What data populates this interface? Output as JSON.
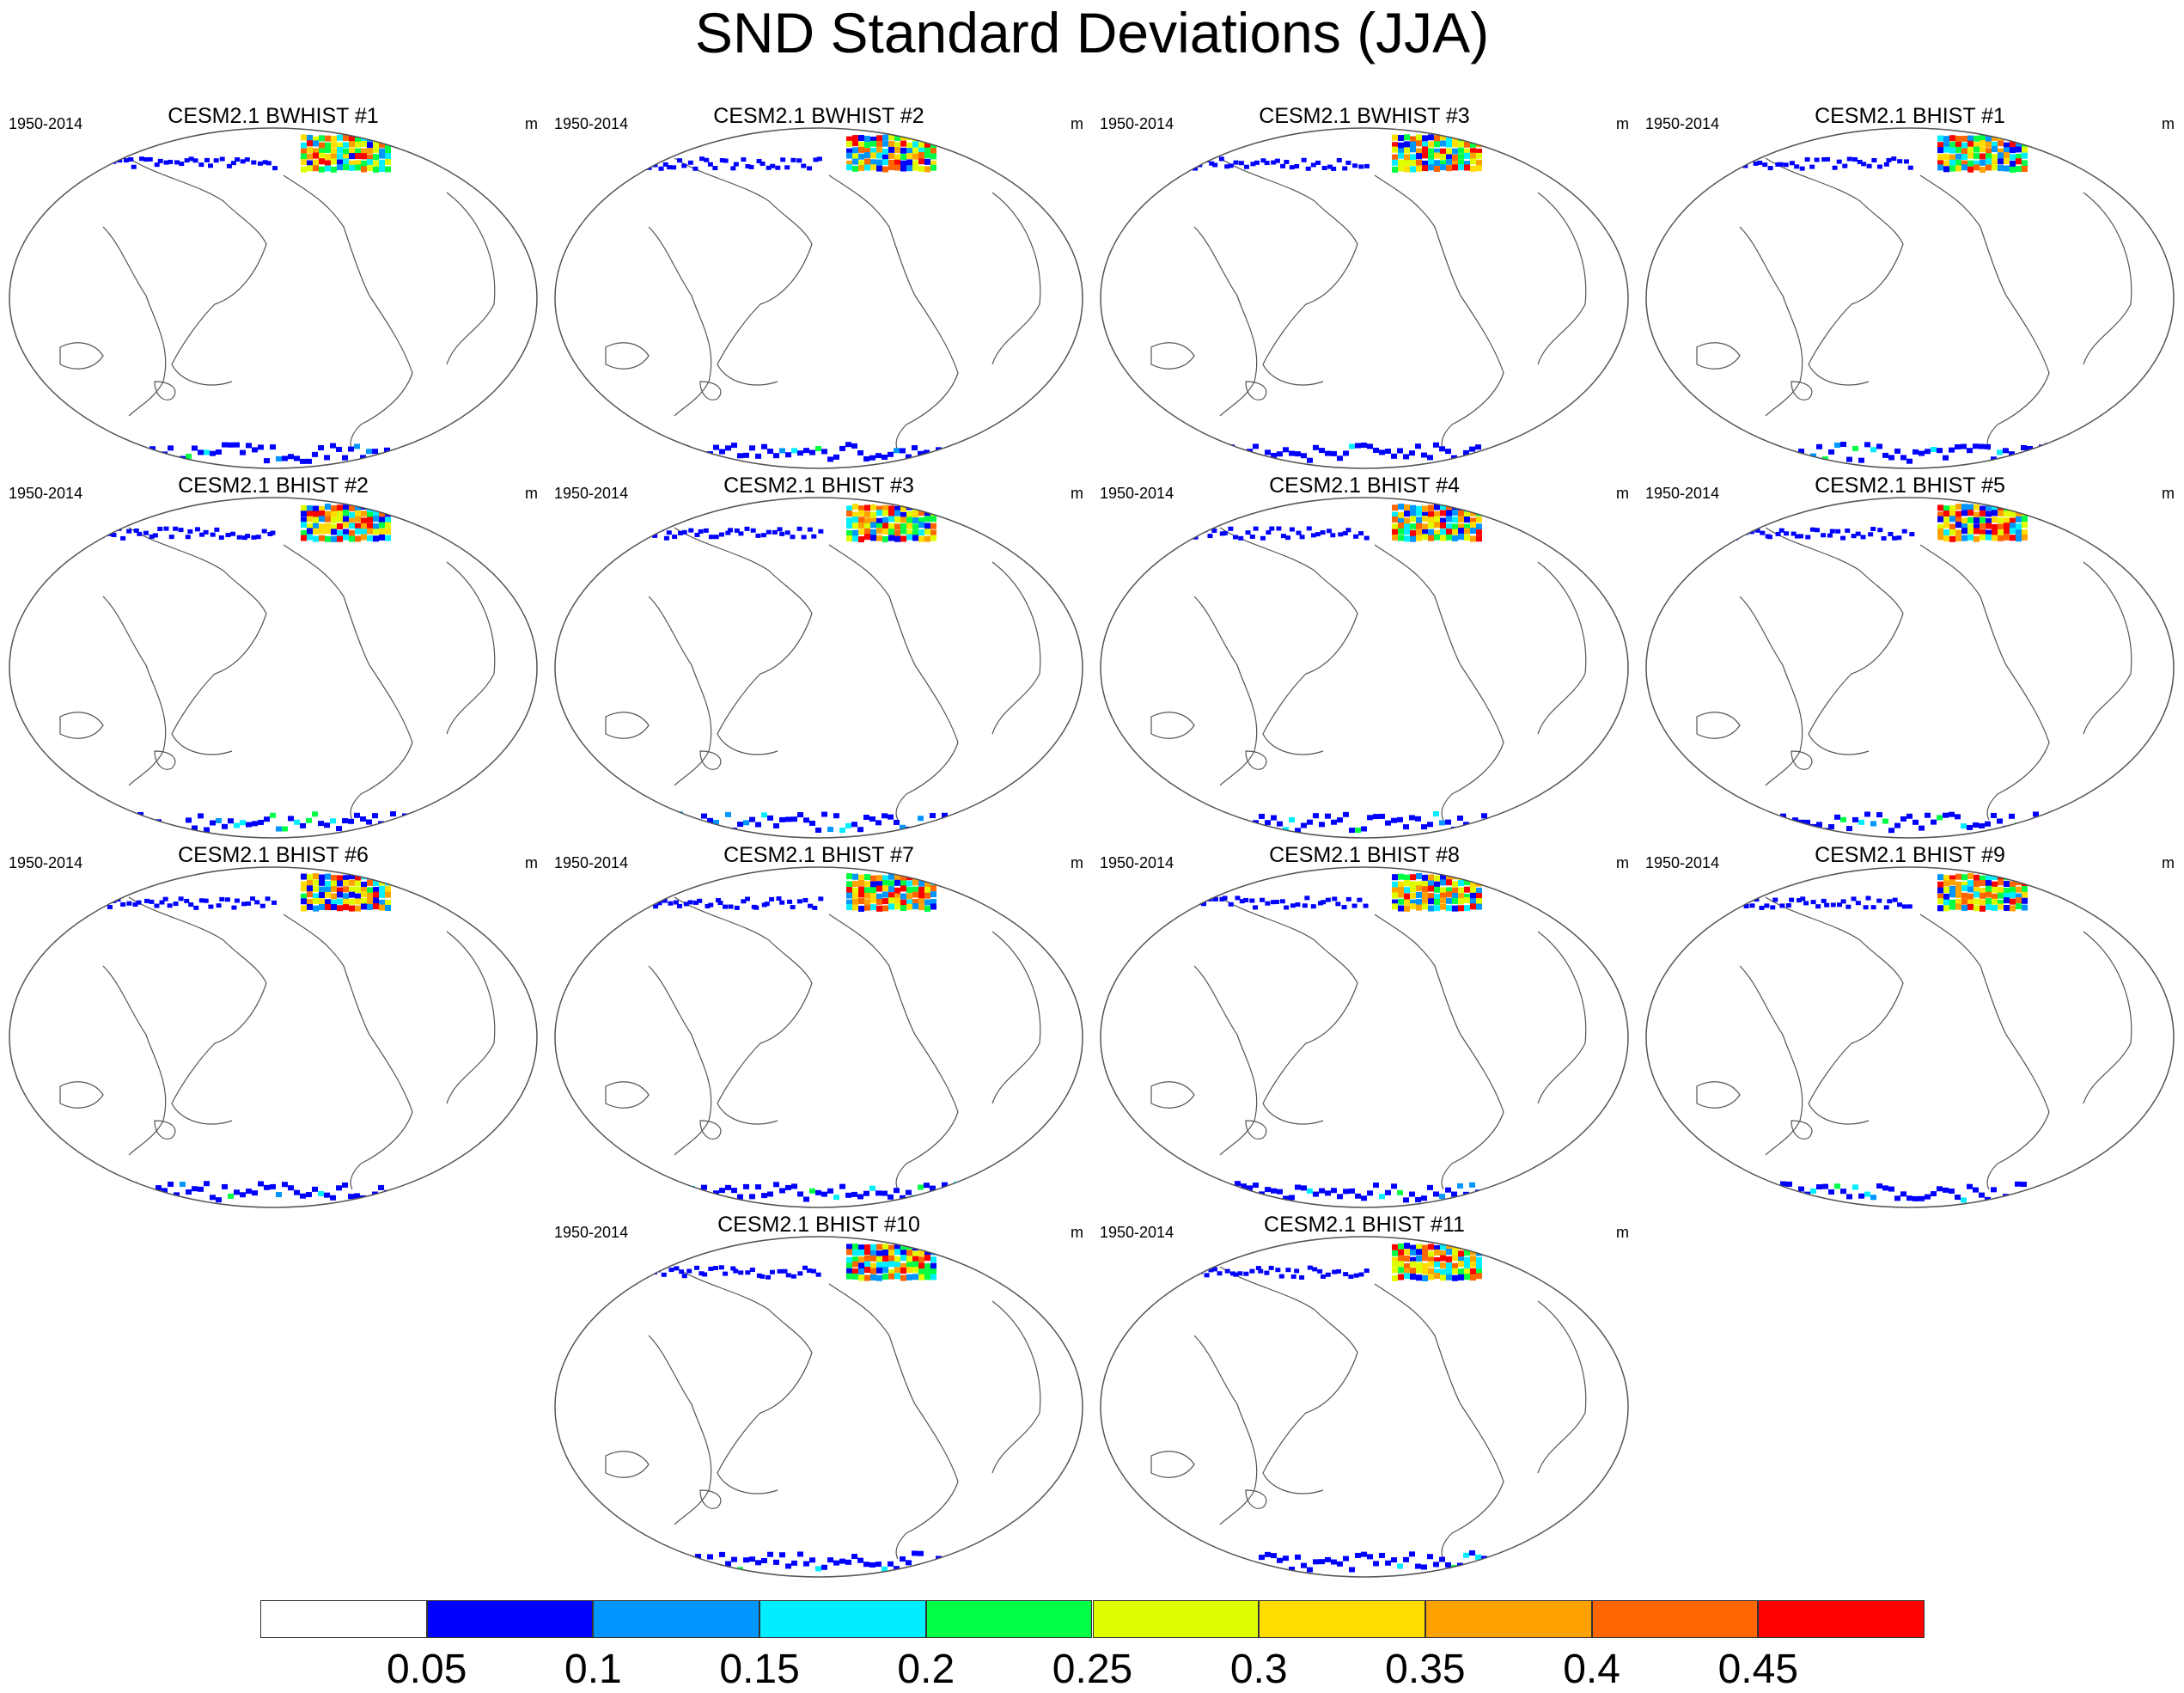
{
  "title": "SND Standard Deviations (JJA)",
  "panels": [
    {
      "title": "CESM2.1 BWHIST #1",
      "years": "1950-2014",
      "units": "m"
    },
    {
      "title": "CESM2.1 BWHIST #2",
      "years": "1950-2014",
      "units": "m"
    },
    {
      "title": "CESM2.1 BWHIST #3",
      "years": "1950-2014",
      "units": "m"
    },
    {
      "title": "CESM2.1 BHIST #1",
      "years": "1950-2014",
      "units": "m"
    },
    {
      "title": "CESM2.1 BHIST #2",
      "years": "1950-2014",
      "units": "m"
    },
    {
      "title": "CESM2.1 BHIST #3",
      "years": "1950-2014",
      "units": "m"
    },
    {
      "title": "CESM2.1 BHIST #4",
      "years": "1950-2014",
      "units": "m"
    },
    {
      "title": "CESM2.1 BHIST #5",
      "years": "1950-2014",
      "units": "m"
    },
    {
      "title": "CESM2.1 BHIST #6",
      "years": "1950-2014",
      "units": "m"
    },
    {
      "title": "CESM2.1 BHIST #7",
      "years": "1950-2014",
      "units": "m"
    },
    {
      "title": "CESM2.1 BHIST #8",
      "years": "1950-2014",
      "units": "m"
    },
    {
      "title": "CESM2.1 BHIST #9",
      "years": "1950-2014",
      "units": "m"
    },
    {
      "title": "CESM2.1 BHIST #10",
      "years": "1950-2014",
      "units": "m"
    },
    {
      "title": "CESM2.1 BHIST #11",
      "years": "1950-2014",
      "units": "m"
    }
  ],
  "colorbar": {
    "labels": [
      "0.05",
      "0.1",
      "0.15",
      "0.2",
      "0.25",
      "0.3",
      "0.35",
      "0.4",
      "0.45"
    ],
    "colors": [
      "#ffffff",
      "#0000ff",
      "#0095ff",
      "#00eeff",
      "#00ff45",
      "#ddff00",
      "#ffdd00",
      "#ffa200",
      "#ff6600",
      "#ff0000"
    ]
  }
}
